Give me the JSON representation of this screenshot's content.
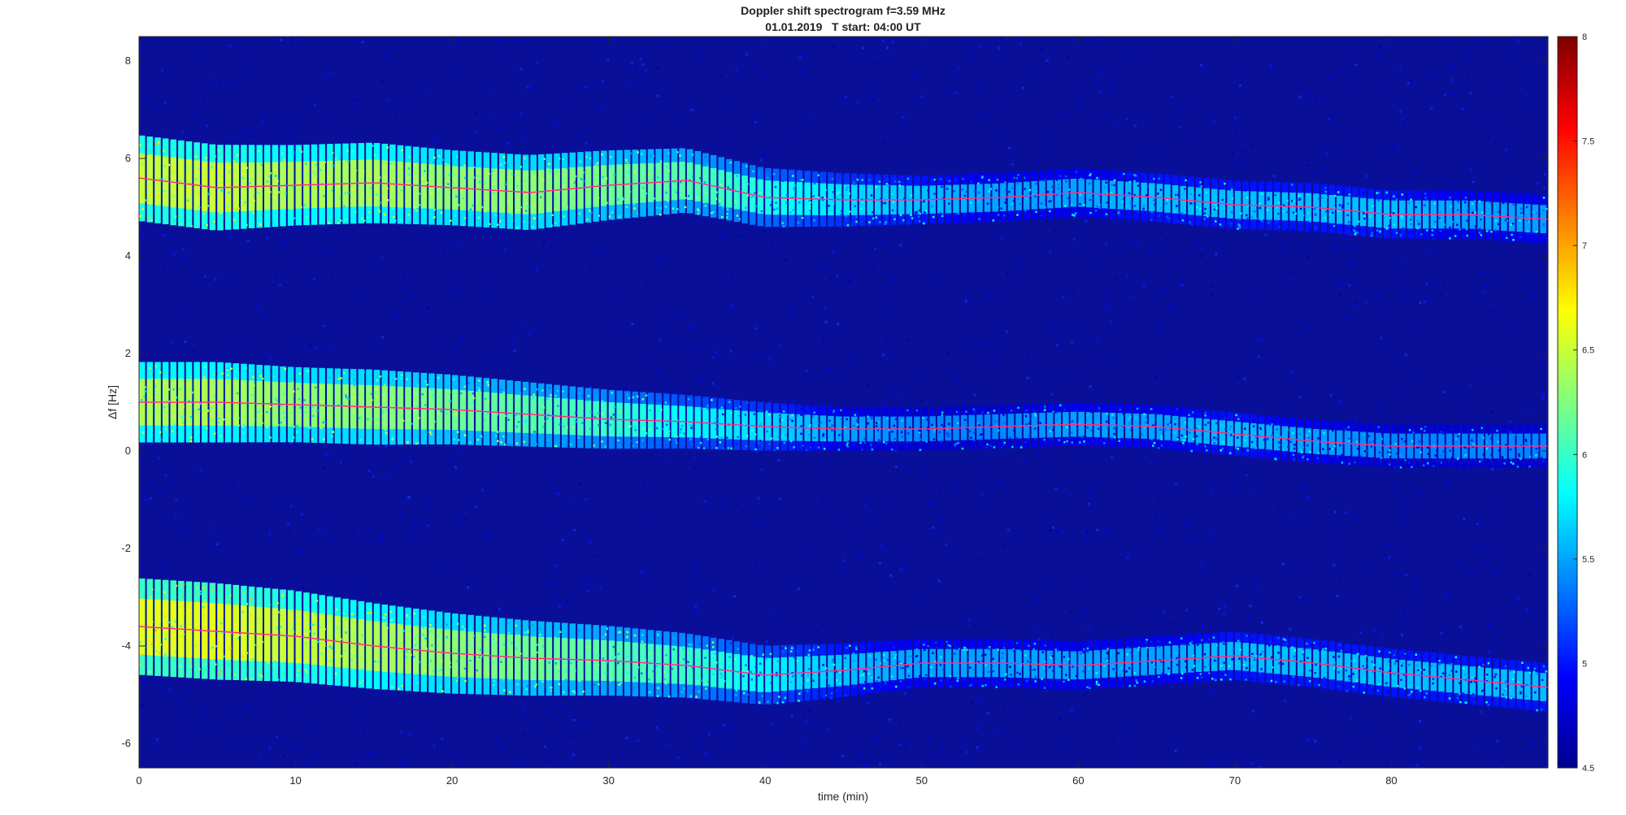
{
  "chart_data": {
    "type": "heatmap",
    "title": "Doppler shift spectrogram f=3.59 MHz",
    "subtitle": "01.01.2019   T start: 04:00 UT",
    "xlabel": "time (min)",
    "ylabel": "Δf [Hz]",
    "xlim": [
      0,
      90
    ],
    "ylim": [
      -6.5,
      8.5
    ],
    "xticks": [
      0,
      10,
      20,
      30,
      40,
      50,
      60,
      70,
      80
    ],
    "yticks": [
      8,
      6,
      4,
      2,
      0,
      -2,
      -4,
      -6
    ],
    "colormap": "jet",
    "colorbar": {
      "range": [
        4.5,
        8
      ],
      "ticks": [
        8,
        7.5,
        7,
        6.5,
        6,
        5.5,
        5,
        4.5
      ]
    },
    "background_color": "#0a0f9a",
    "series": [
      {
        "x": [
          0,
          5,
          10,
          15,
          20,
          25,
          30,
          35,
          40,
          45,
          50,
          55,
          60,
          65,
          70,
          75,
          80,
          85,
          90
        ],
        "y": [
          5.6,
          5.4,
          5.45,
          5.5,
          5.4,
          5.3,
          5.45,
          5.55,
          5.2,
          5.15,
          5.15,
          5.2,
          5.3,
          5.2,
          5.05,
          5.0,
          4.85,
          4.85,
          4.75
        ],
        "width": [
          1.6,
          1.6,
          1.5,
          1.5,
          1.4,
          1.4,
          1.3,
          1.2,
          1.1,
          1.0,
          0.9,
          0.9,
          0.9,
          0.9,
          0.9,
          0.9,
          0.9,
          0.9,
          0.9
        ],
        "intensity": [
          6.5,
          6.5,
          6.4,
          6.4,
          6.3,
          6.3,
          6.2,
          6.1,
          5.9,
          5.7,
          5.6,
          5.5,
          5.5,
          5.6,
          5.6,
          5.6,
          5.6,
          5.5,
          5.5
        ]
      },
      {
        "x": [
          0,
          5,
          10,
          15,
          20,
          25,
          30,
          35,
          40,
          45,
          50,
          55,
          60,
          65,
          70,
          75,
          80,
          85,
          90
        ],
        "y": [
          1.0,
          1.0,
          0.95,
          0.9,
          0.85,
          0.75,
          0.65,
          0.6,
          0.5,
          0.45,
          0.45,
          0.5,
          0.55,
          0.5,
          0.35,
          0.2,
          0.1,
          0.1,
          0.1
        ],
        "width": [
          1.5,
          1.5,
          1.4,
          1.4,
          1.3,
          1.2,
          1.1,
          1.0,
          0.9,
          0.8,
          0.8,
          0.8,
          0.8,
          0.8,
          0.8,
          0.8,
          0.8,
          0.8,
          0.8
        ],
        "intensity": [
          6.4,
          6.4,
          6.3,
          6.3,
          6.2,
          6.1,
          6.0,
          5.8,
          5.7,
          5.5,
          5.4,
          5.4,
          5.5,
          5.5,
          5.6,
          5.5,
          5.4,
          5.4,
          5.4
        ]
      },
      {
        "x": [
          0,
          5,
          10,
          15,
          20,
          25,
          30,
          35,
          40,
          45,
          50,
          55,
          60,
          65,
          70,
          75,
          80,
          85,
          90
        ],
        "y": [
          -3.6,
          -3.7,
          -3.8,
          -4.0,
          -4.15,
          -4.25,
          -4.3,
          -4.4,
          -4.6,
          -4.5,
          -4.35,
          -4.35,
          -4.4,
          -4.3,
          -4.2,
          -4.35,
          -4.55,
          -4.7,
          -4.85
        ],
        "width": [
          1.8,
          1.8,
          1.7,
          1.6,
          1.5,
          1.4,
          1.3,
          1.2,
          1.1,
          1.0,
          0.9,
          0.9,
          0.9,
          0.9,
          0.9,
          0.9,
          0.9,
          0.9,
          0.9
        ],
        "intensity": [
          6.6,
          6.6,
          6.5,
          6.4,
          6.3,
          6.2,
          6.1,
          6.0,
          5.8,
          5.6,
          5.5,
          5.5,
          5.5,
          5.5,
          5.6,
          5.6,
          5.6,
          5.6,
          5.6
        ]
      }
    ]
  }
}
